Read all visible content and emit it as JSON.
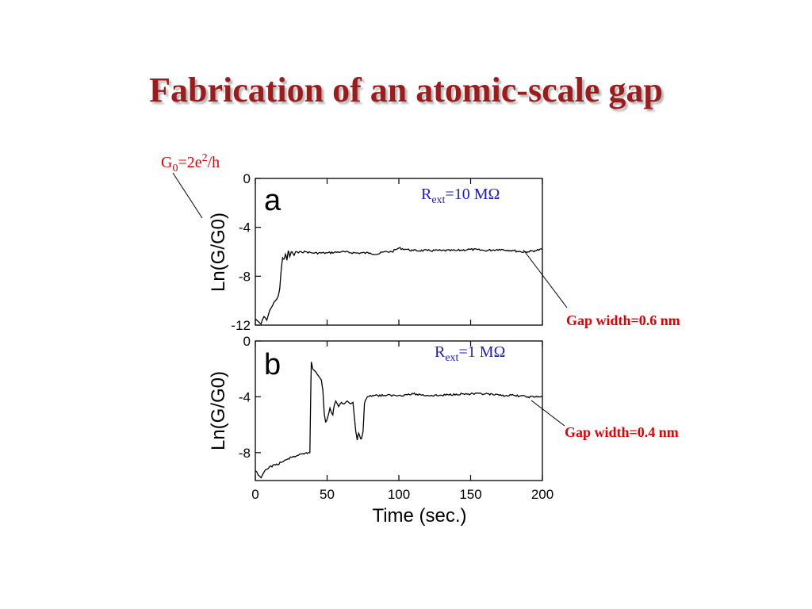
{
  "slide": {
    "title": "Fabrication of an atomic-scale gap"
  },
  "annotations": {
    "g0_base": "G",
    "g0_sub": "0",
    "g0_mid": "=2e",
    "g0_sup": "2",
    "g0_tail": "/h",
    "gap_a": "Gap width=0.6 nm",
    "gap_b": "Gap width=0.4 nm",
    "rext_base": "R",
    "rext_sub": "ext",
    "rext_a_value": "=10 MΩ",
    "rext_b_value": "=1 MΩ"
  },
  "colors": {
    "title": "#9b1c1c",
    "red_annotation": "#e00000",
    "blue_annotation": "#1a1acc",
    "trace": "#000000"
  },
  "chart_data": [
    {
      "type": "line",
      "panel_label": "a",
      "ylabel": "Ln(G/G0)",
      "xlabel": "",
      "xlim": [
        0,
        200
      ],
      "ylim": [
        -12,
        0
      ],
      "yticks": [
        0,
        -4,
        -8,
        -12
      ],
      "ytick_labels": [
        "0",
        "-4",
        "-8",
        "-12"
      ],
      "xticks": [
        0,
        50,
        100,
        150,
        200
      ],
      "xtick_labels": [],
      "grid": false,
      "series": [
        {
          "x": [
            0,
            2,
            4,
            6,
            8,
            10,
            12,
            14,
            16,
            17,
            18,
            19,
            20,
            21,
            22,
            23,
            24,
            25,
            26,
            27,
            28,
            30,
            32,
            35,
            40,
            50,
            60,
            70,
            80,
            85,
            90,
            95,
            100,
            105,
            110,
            120,
            130,
            140,
            150,
            160,
            170,
            180,
            185,
            190,
            195,
            200
          ],
          "y": [
            -11.5,
            -11.7,
            -11.9,
            -11.3,
            -11.6,
            -10.8,
            -10.4,
            -10.0,
            -9.6,
            -9.0,
            -7.5,
            -6.5,
            -6.6,
            -6.2,
            -6.7,
            -5.9,
            -6.4,
            -6.0,
            -6.1,
            -6.3,
            -6.0,
            -6.1,
            -6.0,
            -6.0,
            -6.1,
            -6.1,
            -6.0,
            -6.1,
            -6.1,
            -6.2,
            -6.0,
            -6.0,
            -5.7,
            -5.8,
            -5.9,
            -5.9,
            -5.9,
            -5.9,
            -5.8,
            -5.9,
            -5.8,
            -5.9,
            -6.0,
            -6.0,
            -5.9,
            -5.8
          ]
        }
      ]
    },
    {
      "type": "line",
      "panel_label": "b",
      "ylabel": "Ln(G/G0)",
      "xlabel": "Time (sec.)",
      "xlim": [
        0,
        200
      ],
      "ylim": [
        -10,
        0
      ],
      "yticks": [
        0,
        -4,
        -8
      ],
      "ytick_labels": [
        "0",
        "-4",
        "-8"
      ],
      "xticks": [
        0,
        50,
        100,
        150,
        200
      ],
      "xtick_labels": [
        "0",
        "50",
        "100",
        "150",
        "200"
      ],
      "grid": false,
      "series": [
        {
          "x": [
            0,
            2,
            4,
            6,
            8,
            10,
            14,
            18,
            22,
            26,
            30,
            34,
            37,
            38,
            38.5,
            39,
            40,
            42,
            44,
            46,
            47,
            48,
            49,
            50,
            52,
            54,
            55,
            56,
            58,
            60,
            62,
            64,
            66,
            68,
            70,
            71,
            72,
            73,
            74,
            75,
            76,
            77,
            78,
            80,
            82,
            85,
            90,
            100,
            110,
            120,
            130,
            140,
            150,
            160,
            170,
            180,
            190,
            200
          ],
          "y": [
            -9.3,
            -9.6,
            -9.8,
            -9.4,
            -9.2,
            -9.0,
            -8.9,
            -8.7,
            -8.5,
            -8.3,
            -8.2,
            -8.1,
            -8.0,
            -8.0,
            -4.5,
            -1.5,
            -2.0,
            -2.2,
            -2.5,
            -2.8,
            -3.5,
            -5.2,
            -5.8,
            -5.6,
            -4.8,
            -5.3,
            -4.6,
            -4.3,
            -4.7,
            -4.4,
            -4.5,
            -4.3,
            -4.5,
            -4.4,
            -6.5,
            -7.1,
            -6.6,
            -6.9,
            -7.0,
            -6.5,
            -4.5,
            -4.2,
            -4.0,
            -3.9,
            -3.9,
            -3.9,
            -3.9,
            -3.9,
            -3.8,
            -3.9,
            -3.9,
            -3.8,
            -3.8,
            -3.8,
            -3.9,
            -3.9,
            -4.0,
            -4.0
          ]
        }
      ]
    }
  ]
}
